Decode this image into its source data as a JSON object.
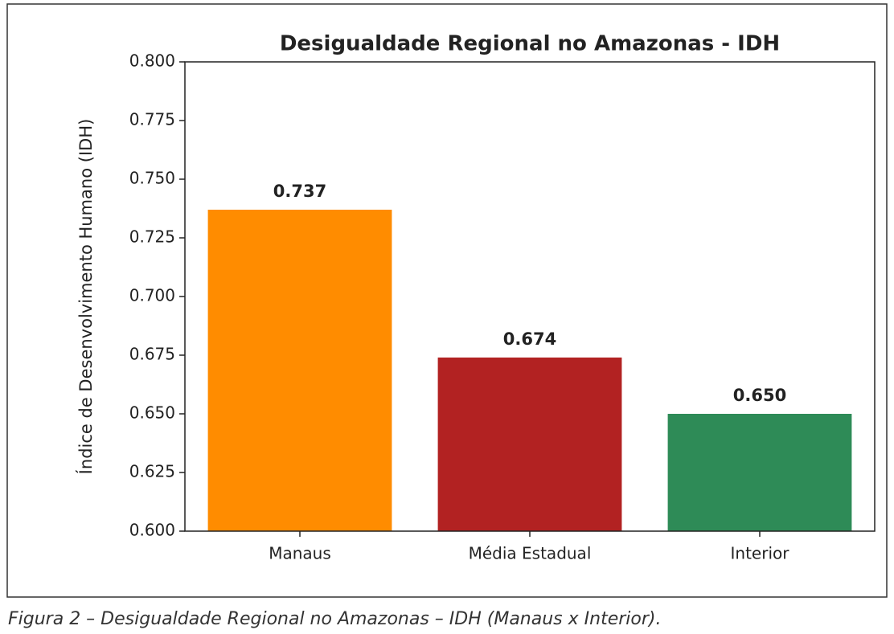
{
  "chart_data": {
    "type": "bar",
    "title": "Desigualdade Regional no Amazonas - IDH",
    "ylabel": "Índice de Desenvolvimento Humano (IDH)",
    "categories": [
      "Manaus",
      "Média Estadual",
      "Interior"
    ],
    "values": [
      0.737,
      0.674,
      0.65
    ],
    "value_labels": [
      "0.737",
      "0.674",
      "0.650"
    ],
    "colors": [
      "#ff8c00",
      "#b22222",
      "#2e8b57"
    ],
    "ylim": [
      0.6,
      0.8
    ],
    "yticks": [
      {
        "value": 0.6,
        "label": "0.600"
      },
      {
        "value": 0.625,
        "label": "0.625"
      },
      {
        "value": 0.65,
        "label": "0.650"
      },
      {
        "value": 0.675,
        "label": "0.675"
      },
      {
        "value": 0.7,
        "label": "0.700"
      },
      {
        "value": 0.725,
        "label": "0.725"
      },
      {
        "value": 0.75,
        "label": "0.750"
      },
      {
        "value": 0.775,
        "label": "0.775"
      },
      {
        "value": 0.8,
        "label": "0.800"
      }
    ],
    "grid": false
  },
  "caption": "Figura 2 – Desigualdade Regional no Amazonas – IDH (Manaus x Interior)."
}
